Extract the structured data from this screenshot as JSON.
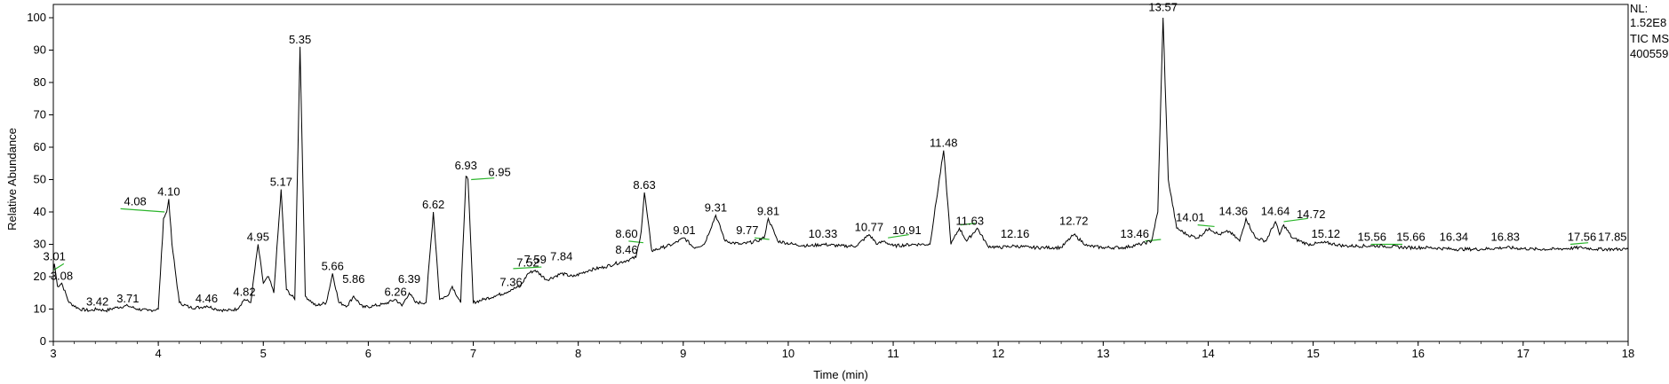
{
  "chart_data": {
    "type": "line",
    "xlabel": "Time (min)",
    "ylabel": "Relative Abundance",
    "xlim": [
      3,
      18
    ],
    "ylim": [
      0,
      100
    ],
    "x_ticks": [
      "3",
      "4",
      "5",
      "6",
      "7",
      "8",
      "9",
      "10",
      "11",
      "12",
      "13",
      "14",
      "15",
      "16",
      "17",
      "18"
    ],
    "y_ticks": [
      "0",
      "10",
      "20",
      "30",
      "40",
      "50",
      "60",
      "70",
      "80",
      "90",
      "100"
    ],
    "header_lines": [
      "NL:",
      "1.52E8",
      "TIC  MS",
      "400559-"
    ],
    "colors": {
      "trace": "#000000",
      "integration": "#2bb52b",
      "frame": "#000000",
      "background": "#ffffff"
    },
    "series": [
      {
        "x": [
          3.0,
          3.01,
          3.04,
          3.08,
          3.15,
          3.25,
          3.35,
          3.42,
          3.5,
          3.6,
          3.71,
          3.8,
          3.9,
          4.0,
          4.05,
          4.08,
          4.1,
          4.13,
          4.2,
          4.3,
          4.4,
          4.46,
          4.55,
          4.65,
          4.75,
          4.82,
          4.88,
          4.95,
          5.0,
          5.05,
          5.1,
          5.17,
          5.22,
          5.3,
          5.35,
          5.4,
          5.5,
          5.6,
          5.66,
          5.72,
          5.8,
          5.86,
          5.95,
          6.05,
          6.15,
          6.26,
          6.32,
          6.39,
          6.45,
          6.55,
          6.62,
          6.68,
          6.75,
          6.8,
          6.88,
          6.93,
          6.95,
          7.0,
          7.1,
          7.2,
          7.3,
          7.36,
          7.45,
          7.52,
          7.59,
          7.7,
          7.84,
          7.95,
          8.1,
          8.25,
          8.35,
          8.46,
          8.55,
          8.6,
          8.63,
          8.7,
          8.8,
          8.9,
          9.01,
          9.1,
          9.2,
          9.31,
          9.4,
          9.55,
          9.7,
          9.77,
          9.81,
          9.9,
          10.05,
          10.2,
          10.33,
          10.5,
          10.65,
          10.77,
          10.85,
          10.91,
          11.0,
          11.2,
          11.35,
          11.48,
          11.55,
          11.63,
          11.7,
          11.8,
          11.9,
          12.0,
          12.16,
          12.3,
          12.45,
          12.6,
          12.72,
          12.85,
          13.0,
          13.2,
          13.35,
          13.46,
          13.52,
          13.57,
          13.62,
          13.7,
          13.8,
          13.9,
          14.01,
          14.1,
          14.2,
          14.3,
          14.36,
          14.45,
          14.55,
          14.64,
          14.68,
          14.72,
          14.8,
          14.95,
          15.12,
          15.3,
          15.56,
          15.66,
          15.9,
          16.1,
          16.34,
          16.6,
          16.83,
          17.1,
          17.3,
          17.56,
          17.7,
          17.85,
          18.0
        ],
        "values": [
          22,
          24,
          17,
          18,
          12,
          10,
          9.5,
          10,
          9.5,
          10.5,
          11,
          10,
          9.5,
          10,
          38,
          40,
          44,
          30,
          12,
          10.5,
          10.5,
          11,
          10,
          9.5,
          10,
          13,
          12,
          30,
          18,
          20,
          15,
          47,
          16,
          13,
          91,
          14,
          11,
          12,
          21,
          12,
          11,
          14,
          10.5,
          11,
          11.5,
          13,
          11,
          15,
          12,
          12,
          40,
          13,
          14,
          17,
          12,
          51,
          50,
          12,
          13,
          14,
          15,
          16,
          17,
          21,
          22,
          19,
          21,
          20,
          22,
          23,
          24,
          25,
          26,
          34,
          46,
          28,
          29,
          30,
          32,
          29,
          30,
          39,
          31,
          30,
          31,
          32,
          38,
          31,
          30,
          29.5,
          30,
          29.5,
          29.5,
          33,
          30,
          31,
          29.5,
          30,
          30,
          59,
          30,
          35,
          31,
          35,
          29.5,
          29,
          29.5,
          29,
          29,
          29,
          33,
          29.5,
          29,
          29,
          30,
          31,
          40,
          100,
          50,
          35,
          33,
          32,
          35,
          33,
          34,
          31,
          38,
          32,
          31,
          37,
          33,
          36,
          32,
          30,
          30.5,
          29.5,
          29.5,
          29.5,
          29,
          29,
          28.5,
          28.5,
          29,
          28.5,
          28.5,
          29,
          28.5,
          28.5,
          28.5
        ]
      }
    ],
    "peak_labels": [
      {
        "text": "3.01",
        "x": 3.01,
        "y": 24
      },
      {
        "text": "3.08",
        "x": 3.08,
        "y": 18
      },
      {
        "text": "3.42",
        "x": 3.42,
        "y": 10
      },
      {
        "text": "3.71",
        "x": 3.71,
        "y": 11
      },
      {
        "text": "4.08",
        "x": 3.78,
        "y": 41
      },
      {
        "text": "4.10",
        "x": 4.1,
        "y": 44
      },
      {
        "text": "4.46",
        "x": 4.46,
        "y": 11
      },
      {
        "text": "4.82",
        "x": 4.82,
        "y": 13
      },
      {
        "text": "4.95",
        "x": 4.95,
        "y": 30
      },
      {
        "text": "5.17",
        "x": 5.17,
        "y": 47
      },
      {
        "text": "5.35",
        "x": 5.35,
        "y": 91
      },
      {
        "text": "5.66",
        "x": 5.66,
        "y": 21
      },
      {
        "text": "5.86",
        "x": 5.86,
        "y": 17
      },
      {
        "text": "6.26",
        "x": 6.26,
        "y": 13
      },
      {
        "text": "6.39",
        "x": 6.39,
        "y": 17
      },
      {
        "text": "6.62",
        "x": 6.62,
        "y": 40
      },
      {
        "text": "6.93",
        "x": 6.93,
        "y": 52
      },
      {
        "text": "6.95",
        "x": 7.25,
        "y": 50
      },
      {
        "text": "7.52",
        "x": 7.52,
        "y": 22
      },
      {
        "text": "7.36",
        "x": 7.36,
        "y": 16
      },
      {
        "text": "7.59",
        "x": 7.59,
        "y": 23
      },
      {
        "text": "7.84",
        "x": 7.84,
        "y": 24
      },
      {
        "text": "8.46",
        "x": 8.46,
        "y": 26
      },
      {
        "text": "8.60",
        "x": 8.46,
        "y": 31
      },
      {
        "text": "8.63",
        "x": 8.63,
        "y": 46
      },
      {
        "text": "9.01",
        "x": 9.01,
        "y": 32
      },
      {
        "text": "9.31",
        "x": 9.31,
        "y": 39
      },
      {
        "text": "9.77",
        "x": 9.61,
        "y": 32
      },
      {
        "text": "9.81",
        "x": 9.81,
        "y": 38
      },
      {
        "text": "10.33",
        "x": 10.33,
        "y": 31
      },
      {
        "text": "10.77",
        "x": 10.77,
        "y": 33
      },
      {
        "text": "10.91",
        "x": 11.13,
        "y": 32
      },
      {
        "text": "11.48",
        "x": 11.48,
        "y": 59
      },
      {
        "text": "11.63",
        "x": 11.73,
        "y": 35
      },
      {
        "text": "12.16",
        "x": 12.16,
        "y": 31
      },
      {
        "text": "12.72",
        "x": 12.72,
        "y": 35
      },
      {
        "text": "13.46",
        "x": 13.3,
        "y": 31
      },
      {
        "text": "13.57",
        "x": 13.57,
        "y": 101
      },
      {
        "text": "14.01",
        "x": 13.83,
        "y": 36
      },
      {
        "text": "14.36",
        "x": 14.24,
        "y": 38
      },
      {
        "text": "14.64",
        "x": 14.64,
        "y": 38
      },
      {
        "text": "14.72",
        "x": 14.98,
        "y": 37
      },
      {
        "text": "15.12",
        "x": 15.12,
        "y": 31
      },
      {
        "text": "15.56",
        "x": 15.56,
        "y": 30
      },
      {
        "text": "15.66",
        "x": 15.93,
        "y": 30
      },
      {
        "text": "16.34",
        "x": 16.34,
        "y": 30
      },
      {
        "text": "16.83",
        "x": 16.83,
        "y": 30
      },
      {
        "text": "17.56",
        "x": 17.56,
        "y": 30
      },
      {
        "text": "17.85",
        "x": 17.85,
        "y": 30
      }
    ],
    "integration_segments": [
      {
        "x": [
          3.0,
          3.1
        ],
        "y": [
          22,
          24
        ]
      },
      {
        "x": [
          3.64,
          4.06
        ],
        "y": [
          41,
          40
        ]
      },
      {
        "x": [
          6.98,
          7.2
        ],
        "y": [
          50,
          50.5
        ]
      },
      {
        "x": [
          7.38,
          7.65
        ],
        "y": [
          22.5,
          23
        ]
      },
      {
        "x": [
          8.48,
          8.62
        ],
        "y": [
          31,
          30.5
        ]
      },
      {
        "x": [
          9.68,
          9.82
        ],
        "y": [
          32,
          31.5
        ]
      },
      {
        "x": [
          10.95,
          11.15
        ],
        "y": [
          32,
          33
        ]
      },
      {
        "x": [
          11.64,
          11.78
        ],
        "y": [
          36,
          36.5
        ]
      },
      {
        "x": [
          13.4,
          13.55
        ],
        "y": [
          31,
          31.5
        ]
      },
      {
        "x": [
          13.9,
          14.06
        ],
        "y": [
          36,
          35.5
        ]
      },
      {
        "x": [
          14.72,
          14.95
        ],
        "y": [
          37,
          38
        ]
      },
      {
        "x": [
          15.55,
          15.85
        ],
        "y": [
          30,
          30
        ]
      },
      {
        "x": [
          17.45,
          17.62
        ],
        "y": [
          30,
          30.5
        ]
      }
    ]
  }
}
